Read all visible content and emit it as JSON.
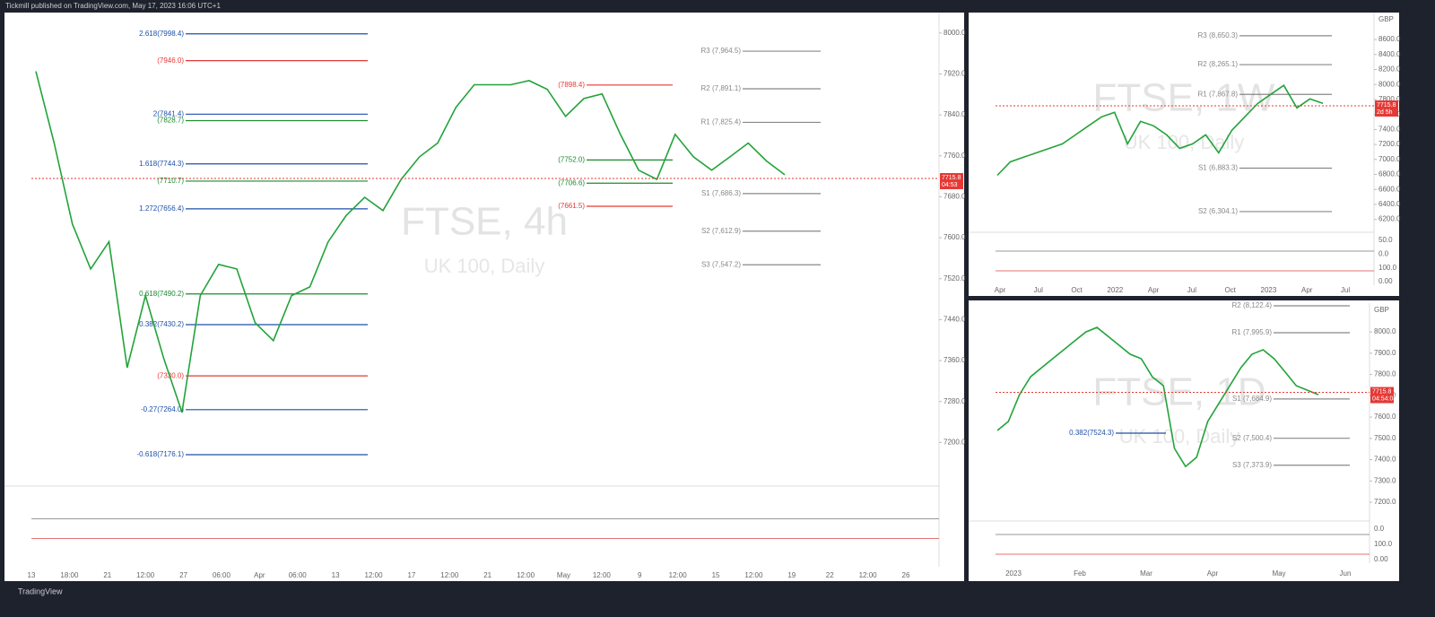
{
  "header": {
    "publisher": "Tickmill published on TradingView.com, May 17, 2023 16:06 UTC+1"
  },
  "footer": {
    "logo": "TradingView"
  },
  "chart_data": [
    {
      "type": "line",
      "title": "FTSE, 4h",
      "subtitle": "UK 100, Daily",
      "color": "#22a33a",
      "values": [
        7925,
        7785,
        7627,
        7539,
        7592,
        7346,
        7487,
        7364,
        7259,
        7487,
        7548,
        7539,
        7434,
        7399,
        7487,
        7504,
        7592,
        7644,
        7679,
        7653,
        7714,
        7758,
        7785,
        7855,
        7899,
        7899,
        7899,
        7907,
        7890,
        7837,
        7872,
        7881,
        7802,
        7732,
        7714,
        7802,
        7758,
        7732,
        7758,
        7785,
        7750,
        7723
      ],
      "ylim": [
        7127,
        8040
      ],
      "yticks": [
        {
          "value": 8000,
          "label": "8000.0"
        },
        {
          "value": 7920,
          "label": "7920.0"
        },
        {
          "value": 7840,
          "label": "7840.0"
        },
        {
          "value": 7760,
          "label": "7760.0"
        },
        {
          "value": 7680,
          "label": "7680.0"
        },
        {
          "value": 7600,
          "label": "7600.0"
        },
        {
          "value": 7520,
          "label": "7520.0"
        },
        {
          "value": 7440,
          "label": "7440.0"
        },
        {
          "value": 7360,
          "label": "7360.0"
        },
        {
          "value": 7280,
          "label": "7280.0"
        },
        {
          "value": 7200,
          "label": "7200.0"
        }
      ],
      "last_price": 7715.8,
      "countdown": "04:53",
      "fib_levels": [
        {
          "label": "2.618(7998.4)",
          "value": 7998.4,
          "color": "#1e4fa8"
        },
        {
          "label": "(7946.0)",
          "value": 7946.0,
          "color": "#e53935"
        },
        {
          "label": "2(7841.4)",
          "value": 7841.4,
          "color": "#1e4fa8"
        },
        {
          "label": "(7828.7)",
          "value": 7828.7,
          "color": "#1b8a2e"
        },
        {
          "label": "1.618(7744.3)",
          "value": 7744.3,
          "color": "#1e4fa8"
        },
        {
          "label": "(7710.7)",
          "value": 7710.7,
          "color": "#1b8a2e"
        },
        {
          "label": "1.272(7656.4)",
          "value": 7656.4,
          "color": "#1e4fa8"
        },
        {
          "label": "0.618(7490.2)",
          "value": 7490.2,
          "color": "#1b8a2e"
        },
        {
          "label": "0.382(7430.2)",
          "value": 7430.2,
          "color": "#1e4fa8"
        },
        {
          "label": "(7330.0)",
          "value": 7330.0,
          "color": "#e53935"
        },
        {
          "label": "-0.27(7264.0)",
          "value": 7264.0,
          "color": "#1e4fa8"
        },
        {
          "label": "-0.618(7176.1)",
          "value": 7176.1,
          "color": "#1e4fa8"
        }
      ],
      "pivot_levels": [
        {
          "label": "R3 (7,964.5)",
          "value": 7964.5,
          "color": "#888888"
        },
        {
          "label": "R2 (7,891.1)",
          "value": 7891.1,
          "color": "#888888"
        },
        {
          "label": "R1 (7,825.4)",
          "value": 7825.4,
          "color": "#888888"
        },
        {
          "label": "S1 (7,686.3)",
          "value": 7686.3,
          "color": "#888888"
        },
        {
          "label": "S2 (7,612.9)",
          "value": 7612.9,
          "color": "#888888"
        },
        {
          "label": "S3 (7,547.2)",
          "value": 7547.2,
          "color": "#888888"
        }
      ],
      "levels": [
        {
          "label": "(7898.4)",
          "value": 7898.4,
          "color": "#e53935"
        },
        {
          "label": "(7752.0)",
          "value": 7752.0,
          "color": "#1b8a2e"
        },
        {
          "label": "(7706.6)",
          "value": 7706.6,
          "color": "#1b8a2e"
        },
        {
          "label": "(7661.5)",
          "value": 7661.5,
          "color": "#e53935"
        }
      ],
      "x_labels": [
        "13",
        "18:00",
        "21",
        "12:00",
        "27",
        "06:00",
        "Apr",
        "06:00",
        "13",
        "12:00",
        "17",
        "12:00",
        "21",
        "12:00",
        "May",
        "12:00",
        "9",
        "12:00",
        "15",
        "12:00",
        "19",
        "22",
        "12:00",
        "26"
      ]
    },
    {
      "type": "line",
      "title": "FTSE, 1W",
      "subtitle": "UK 100, Daily",
      "currency": "GBP",
      "color": "#22a33a",
      "values": [
        6788,
        6968,
        7028,
        7088,
        7148,
        7208,
        7328,
        7448,
        7568,
        7628,
        7208,
        7508,
        7448,
        7328,
        7148,
        7208,
        7328,
        7088,
        7388,
        7568,
        7748,
        7868,
        7988,
        7688,
        7808,
        7748
      ],
      "ylim": [
        6040,
        8960
      ],
      "yticks": [
        {
          "value": 8600,
          "label": "8600.0"
        },
        {
          "value": 8400,
          "label": "8400.0"
        },
        {
          "value": 8200,
          "label": "8200.0"
        },
        {
          "value": 8000,
          "label": "8000.0"
        },
        {
          "value": 7800,
          "label": "7800.0"
        },
        {
          "value": 7600,
          "label": "7600.0"
        },
        {
          "value": 7400,
          "label": "7400.0"
        },
        {
          "value": 7200,
          "label": "7200.0"
        },
        {
          "value": 7000,
          "label": "7000.0"
        },
        {
          "value": 6800,
          "label": "6800.0"
        },
        {
          "value": 6600,
          "label": "6600.0"
        },
        {
          "value": 6400,
          "label": "6400.0"
        },
        {
          "value": 6200,
          "label": "6200.0"
        }
      ],
      "last_price": 7715.8,
      "countdown": "2d 5h",
      "pivot_levels": [
        {
          "label": "R3 (8,650.3)",
          "value": 8650.3,
          "color": "#888888"
        },
        {
          "label": "R2 (8,265.1)",
          "value": 8265.1,
          "color": "#888888"
        },
        {
          "label": "R1 (7,867.8)",
          "value": 7867.8,
          "color": "#888888"
        },
        {
          "label": "S1 (6,883.3)",
          "value": 6883.3,
          "color": "#888888"
        },
        {
          "label": "S2 (6,304.1)",
          "value": 6304.1,
          "color": "#888888"
        }
      ],
      "x_labels": [
        "Apr",
        "Jul",
        "Oct",
        "2022",
        "Apr",
        "Jul",
        "Oct",
        "2023",
        "Apr",
        "Jul"
      ],
      "osc_labels": [
        "50.0",
        "0.0",
        "100.0",
        "0.00"
      ]
    },
    {
      "type": "line",
      "title": "FTSE, 1D",
      "subtitle": "UK 100, Daily",
      "currency": "GBP",
      "color": "#22a33a",
      "values": [
        7537,
        7579,
        7705,
        7789,
        7832,
        7874,
        7916,
        7958,
        8000,
        8021,
        7979,
        7937,
        7895,
        7874,
        7789,
        7747,
        7453,
        7368,
        7411,
        7579,
        7663,
        7747,
        7832,
        7895,
        7916,
        7874,
        7811,
        7747,
        7726,
        7705
      ],
      "ylim": [
        7116,
        8135
      ],
      "yticks": [
        {
          "value": 8000,
          "label": "8000.0"
        },
        {
          "value": 7900,
          "label": "7900.0"
        },
        {
          "value": 7800,
          "label": "7800.0"
        },
        {
          "value": 7700,
          "label": "7700.0"
        },
        {
          "value": 7600,
          "label": "7600.0"
        },
        {
          "value": 7500,
          "label": "7500.0"
        },
        {
          "value": 7400,
          "label": "7400.0"
        },
        {
          "value": 7300,
          "label": "7300.0"
        },
        {
          "value": 7200,
          "label": "7200.0"
        }
      ],
      "last_price": 7715.8,
      "countdown": "04:54:04",
      "fib_levels": [
        {
          "label": "0.382(7524.3)",
          "value": 7524.3,
          "color": "#1e4fa8"
        }
      ],
      "pivot_levels": [
        {
          "label": "R2 (8,122.4)",
          "value": 8122.4,
          "color": "#888888"
        },
        {
          "label": "R1 (7,995.9)",
          "value": 7995.9,
          "color": "#888888"
        },
        {
          "label": "S1 (7,684.9)",
          "value": 7684.9,
          "color": "#888888"
        },
        {
          "label": "S2 (7,500.4)",
          "value": 7500.4,
          "color": "#888888"
        },
        {
          "label": "S3 (7,373.9)",
          "value": 7373.9,
          "color": "#888888"
        }
      ],
      "x_labels": [
        "2023",
        "Feb",
        "Mar",
        "Apr",
        "May",
        "Jun"
      ],
      "osc_labels": [
        "0.0",
        "100.0",
        "0.00"
      ]
    }
  ]
}
